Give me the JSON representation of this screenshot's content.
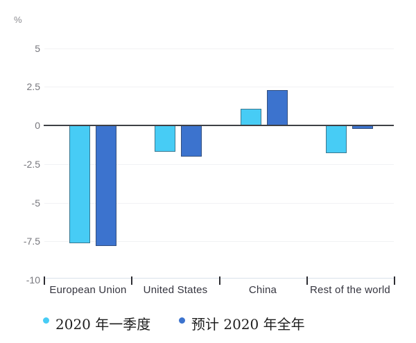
{
  "chart_data": {
    "type": "bar",
    "title": "",
    "ylabel": "%",
    "xlabel": "",
    "categories": [
      "European Union",
      "United States",
      "China",
      "Rest of the world"
    ],
    "series": [
      {
        "name": "2020 年一季度",
        "color": "#47CCF5",
        "values": [
          -7.6,
          -1.7,
          1.1,
          -1.8
        ]
      },
      {
        "name": "预计 2020 年全年",
        "color": "#3C73CE",
        "values": [
          -7.8,
          -2.0,
          2.3,
          -0.2
        ]
      }
    ],
    "ylim": [
      -10,
      5
    ],
    "yticks": [
      5,
      2.5,
      0,
      -2.5,
      -5,
      -7.5,
      -10
    ],
    "grid": "horizontal-light",
    "zero_line": true,
    "legend_position": "bottom"
  },
  "colors": {
    "series_q1": "#47CCF5",
    "series_forecast": "#3C73CE",
    "zero_axis": "#3e4045",
    "gridline": "#f1f2f4",
    "category_axis": "#d8e1ea",
    "tick_label": "#77777d",
    "category_label": "#34343e"
  }
}
